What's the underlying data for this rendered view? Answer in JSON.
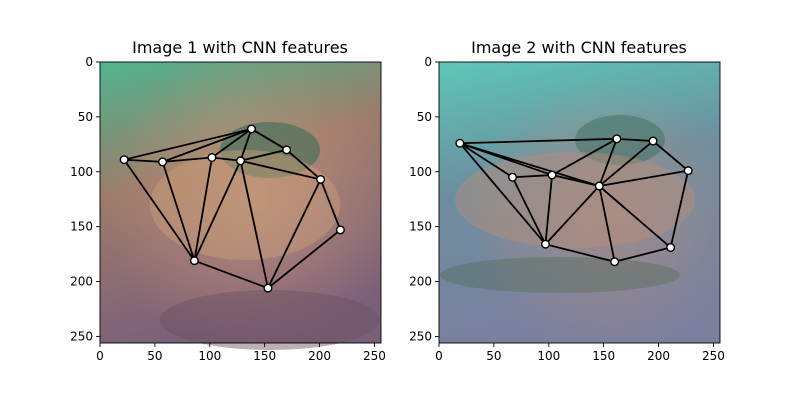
{
  "chart_data": [
    {
      "type": "scatter",
      "title": "Image 1 with CNN features",
      "xlim": [
        0,
        256
      ],
      "ylim": [
        256,
        0
      ],
      "xticks": [
        0,
        50,
        100,
        150,
        200,
        250
      ],
      "yticks": [
        0,
        50,
        100,
        150,
        200,
        250
      ],
      "grid": false,
      "colors": {
        "bg_top": "#4fb58f",
        "bg_mid": "#9c7a6a",
        "bg_bot": "#7a5f7a",
        "duck_body": "#c9a07a",
        "duck_head": "#2f6b55",
        "edges": "#000000",
        "markers": "#ffffff"
      },
      "points": [
        {
          "x": 138,
          "y": 61
        },
        {
          "x": 170,
          "y": 80
        },
        {
          "x": 201,
          "y": 107
        },
        {
          "x": 219,
          "y": 153
        },
        {
          "x": 153,
          "y": 206
        },
        {
          "x": 86,
          "y": 181
        },
        {
          "x": 22,
          "y": 89
        },
        {
          "x": 57,
          "y": 91
        },
        {
          "x": 102,
          "y": 87
        },
        {
          "x": 128,
          "y": 90
        }
      ],
      "edges": [
        [
          6,
          0
        ],
        [
          6,
          7
        ],
        [
          6,
          5
        ],
        [
          7,
          0
        ],
        [
          7,
          8
        ],
        [
          7,
          5
        ],
        [
          8,
          0
        ],
        [
          8,
          9
        ],
        [
          8,
          5
        ],
        [
          9,
          0
        ],
        [
          9,
          1
        ],
        [
          9,
          2
        ],
        [
          9,
          5
        ],
        [
          9,
          4
        ],
        [
          0,
          1
        ],
        [
          1,
          2
        ],
        [
          2,
          3
        ],
        [
          2,
          4
        ],
        [
          3,
          4
        ],
        [
          5,
          4
        ]
      ]
    },
    {
      "type": "scatter",
      "title": "Image 2 with CNN features",
      "xlim": [
        0,
        256
      ],
      "ylim": [
        256,
        0
      ],
      "xticks": [
        0,
        50,
        100,
        150,
        200,
        250
      ],
      "yticks": [
        0,
        50,
        100,
        150,
        200,
        250
      ],
      "grid": false,
      "colors": {
        "bg_top": "#5cc7b7",
        "bg_mid": "#6d8fa0",
        "bg_bot": "#7a7f9e",
        "duck_body": "#b98f7a",
        "duck_head": "#3e6e60",
        "edges": "#000000",
        "markers": "#ffffff"
      },
      "points": [
        {
          "x": 19,
          "y": 74
        },
        {
          "x": 162,
          "y": 70
        },
        {
          "x": 195,
          "y": 72
        },
        {
          "x": 227,
          "y": 99
        },
        {
          "x": 211,
          "y": 169
        },
        {
          "x": 160,
          "y": 182
        },
        {
          "x": 97,
          "y": 166
        },
        {
          "x": 67,
          "y": 105
        },
        {
          "x": 103,
          "y": 103
        },
        {
          "x": 146,
          "y": 113
        }
      ],
      "edges": [
        [
          0,
          1
        ],
        [
          0,
          7
        ],
        [
          0,
          6
        ],
        [
          0,
          8
        ],
        [
          0,
          9
        ],
        [
          7,
          8
        ],
        [
          7,
          6
        ],
        [
          8,
          6
        ],
        [
          8,
          1
        ],
        [
          8,
          9
        ],
        [
          9,
          1
        ],
        [
          9,
          2
        ],
        [
          9,
          3
        ],
        [
          9,
          4
        ],
        [
          9,
          5
        ],
        [
          9,
          6
        ],
        [
          1,
          2
        ],
        [
          2,
          3
        ],
        [
          3,
          4
        ],
        [
          4,
          5
        ],
        [
          5,
          6
        ]
      ]
    }
  ]
}
